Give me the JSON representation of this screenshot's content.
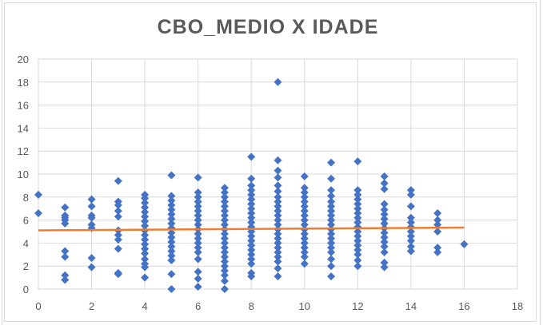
{
  "chart_data": {
    "type": "scatter",
    "title": "CBO_MEDIO X IDADE",
    "xlabel": "",
    "ylabel": "",
    "xlim": [
      0,
      18
    ],
    "ylim": [
      0,
      20
    ],
    "xticks": [
      "0",
      "2",
      "4",
      "6",
      "8",
      "10",
      "12",
      "14",
      "16",
      "18"
    ],
    "yticks": [
      "0",
      "2",
      "4",
      "6",
      "8",
      "10",
      "12",
      "14",
      "16",
      "18",
      "20"
    ],
    "grid": true,
    "legend": "none",
    "colors": {
      "points": "#4472c4",
      "trendline": "#ed7d31",
      "grid": "#d9d9d9",
      "text": "#595959"
    },
    "series": [
      {
        "points": [
          [
            0,
            8.2
          ],
          [
            0,
            6.6
          ],
          [
            1,
            7.1
          ],
          [
            1,
            6.4
          ],
          [
            1,
            6.2
          ],
          [
            1,
            6.0
          ],
          [
            1,
            5.7
          ],
          [
            1,
            3.3
          ],
          [
            1,
            2.8
          ],
          [
            1,
            1.2
          ],
          [
            1,
            0.8
          ],
          [
            2,
            7.8
          ],
          [
            2,
            7.2
          ],
          [
            2,
            6.4
          ],
          [
            2,
            6.2
          ],
          [
            2,
            5.6
          ],
          [
            2,
            5.3
          ],
          [
            2,
            2.7
          ],
          [
            2,
            1.9
          ],
          [
            3,
            9.4
          ],
          [
            3,
            7.6
          ],
          [
            3,
            7.3
          ],
          [
            3,
            6.8
          ],
          [
            3,
            6.3
          ],
          [
            3,
            5.1
          ],
          [
            3,
            4.7
          ],
          [
            3,
            4.3
          ],
          [
            3,
            3.5
          ],
          [
            3,
            1.4
          ],
          [
            3,
            1.3
          ],
          [
            4,
            8.2
          ],
          [
            4,
            7.9
          ],
          [
            4,
            7.5
          ],
          [
            4,
            7.1
          ],
          [
            4,
            6.7
          ],
          [
            4,
            6.3
          ],
          [
            4,
            5.9
          ],
          [
            4,
            5.5
          ],
          [
            4,
            5.1
          ],
          [
            4,
            4.7
          ],
          [
            4,
            4.3
          ],
          [
            4,
            3.9
          ],
          [
            4,
            3.5
          ],
          [
            4,
            3.1
          ],
          [
            4,
            2.6
          ],
          [
            4,
            2.2
          ],
          [
            4,
            1.9
          ],
          [
            4,
            1.0
          ],
          [
            5,
            9.9
          ],
          [
            5,
            8.1
          ],
          [
            5,
            7.7
          ],
          [
            5,
            7.3
          ],
          [
            5,
            6.9
          ],
          [
            5,
            6.5
          ],
          [
            5,
            6.1
          ],
          [
            5,
            5.7
          ],
          [
            5,
            5.3
          ],
          [
            5,
            4.9
          ],
          [
            5,
            4.5
          ],
          [
            5,
            4.1
          ],
          [
            5,
            3.7
          ],
          [
            5,
            3.3
          ],
          [
            5,
            2.9
          ],
          [
            5,
            2.5
          ],
          [
            5,
            1.3
          ],
          [
            5,
            0.0
          ],
          [
            6,
            9.7
          ],
          [
            6,
            8.4
          ],
          [
            6,
            8.0
          ],
          [
            6,
            7.6
          ],
          [
            6,
            7.2
          ],
          [
            6,
            6.8
          ],
          [
            6,
            6.4
          ],
          [
            6,
            6.0
          ],
          [
            6,
            5.6
          ],
          [
            6,
            5.2
          ],
          [
            6,
            4.8
          ],
          [
            6,
            4.4
          ],
          [
            6,
            4.0
          ],
          [
            6,
            3.6
          ],
          [
            6,
            3.2
          ],
          [
            6,
            2.6
          ],
          [
            6,
            1.5
          ],
          [
            6,
            0.9
          ],
          [
            6,
            0.2
          ],
          [
            7,
            8.8
          ],
          [
            7,
            8.4
          ],
          [
            7,
            8.0
          ],
          [
            7,
            7.6
          ],
          [
            7,
            7.2
          ],
          [
            7,
            6.8
          ],
          [
            7,
            6.4
          ],
          [
            7,
            6.0
          ],
          [
            7,
            5.6
          ],
          [
            7,
            5.2
          ],
          [
            7,
            4.8
          ],
          [
            7,
            4.4
          ],
          [
            7,
            4.0
          ],
          [
            7,
            3.6
          ],
          [
            7,
            3.2
          ],
          [
            7,
            2.8
          ],
          [
            7,
            2.4
          ],
          [
            7,
            2.0
          ],
          [
            7,
            1.6
          ],
          [
            7,
            1.2
          ],
          [
            7,
            0.7
          ],
          [
            7,
            0.0
          ],
          [
            8,
            11.5
          ],
          [
            8,
            9.6
          ],
          [
            8,
            9.0
          ],
          [
            8,
            8.6
          ],
          [
            8,
            8.2
          ],
          [
            8,
            7.8
          ],
          [
            8,
            7.4
          ],
          [
            8,
            7.0
          ],
          [
            8,
            6.6
          ],
          [
            8,
            6.2
          ],
          [
            8,
            5.8
          ],
          [
            8,
            5.4
          ],
          [
            8,
            5.0
          ],
          [
            8,
            4.6
          ],
          [
            8,
            4.2
          ],
          [
            8,
            3.8
          ],
          [
            8,
            3.4
          ],
          [
            8,
            3.0
          ],
          [
            8,
            2.6
          ],
          [
            8,
            2.2
          ],
          [
            8,
            1.4
          ],
          [
            8,
            1.1
          ],
          [
            9,
            18.0
          ],
          [
            9,
            11.2
          ],
          [
            9,
            10.3
          ],
          [
            9,
            9.7
          ],
          [
            9,
            9.0
          ],
          [
            9,
            8.5
          ],
          [
            9,
            8.0
          ],
          [
            9,
            7.6
          ],
          [
            9,
            7.2
          ],
          [
            9,
            6.8
          ],
          [
            9,
            6.4
          ],
          [
            9,
            6.0
          ],
          [
            9,
            5.6
          ],
          [
            9,
            5.2
          ],
          [
            9,
            4.8
          ],
          [
            9,
            4.4
          ],
          [
            9,
            4.0
          ],
          [
            9,
            3.6
          ],
          [
            9,
            3.2
          ],
          [
            9,
            2.8
          ],
          [
            9,
            2.4
          ],
          [
            9,
            1.8
          ],
          [
            9,
            1.1
          ],
          [
            10,
            9.8
          ],
          [
            10,
            8.8
          ],
          [
            10,
            8.4
          ],
          [
            10,
            8.0
          ],
          [
            10,
            7.6
          ],
          [
            10,
            7.2
          ],
          [
            10,
            6.8
          ],
          [
            10,
            6.4
          ],
          [
            10,
            6.0
          ],
          [
            10,
            5.6
          ],
          [
            10,
            5.2
          ],
          [
            10,
            4.8
          ],
          [
            10,
            4.4
          ],
          [
            10,
            4.0
          ],
          [
            10,
            3.6
          ],
          [
            10,
            3.2
          ],
          [
            10,
            2.8
          ],
          [
            10,
            2.2
          ],
          [
            11,
            11.0
          ],
          [
            11,
            9.6
          ],
          [
            11,
            8.6
          ],
          [
            11,
            8.1
          ],
          [
            11,
            7.6
          ],
          [
            11,
            7.2
          ],
          [
            11,
            6.8
          ],
          [
            11,
            6.4
          ],
          [
            11,
            6.0
          ],
          [
            11,
            5.6
          ],
          [
            11,
            5.2
          ],
          [
            11,
            4.8
          ],
          [
            11,
            4.4
          ],
          [
            11,
            4.0
          ],
          [
            11,
            3.6
          ],
          [
            11,
            3.2
          ],
          [
            11,
            2.6
          ],
          [
            11,
            2.0
          ],
          [
            11,
            1.1
          ],
          [
            12,
            11.1
          ],
          [
            12,
            8.6
          ],
          [
            12,
            8.2
          ],
          [
            12,
            7.8
          ],
          [
            12,
            7.4
          ],
          [
            12,
            7.0
          ],
          [
            12,
            6.6
          ],
          [
            12,
            6.2
          ],
          [
            12,
            5.8
          ],
          [
            12,
            5.4
          ],
          [
            12,
            5.0
          ],
          [
            12,
            4.6
          ],
          [
            12,
            4.2
          ],
          [
            12,
            3.8
          ],
          [
            12,
            3.4
          ],
          [
            12,
            3.0
          ],
          [
            12,
            2.5
          ],
          [
            12,
            2.0
          ],
          [
            13,
            9.8
          ],
          [
            13,
            9.2
          ],
          [
            13,
            8.7
          ],
          [
            13,
            7.4
          ],
          [
            13,
            6.9
          ],
          [
            13,
            6.5
          ],
          [
            13,
            6.1
          ],
          [
            13,
            5.7
          ],
          [
            13,
            5.3
          ],
          [
            13,
            4.9
          ],
          [
            13,
            4.5
          ],
          [
            13,
            4.1
          ],
          [
            13,
            3.7
          ],
          [
            13,
            3.2
          ],
          [
            13,
            2.3
          ],
          [
            13,
            1.9
          ],
          [
            14,
            8.6
          ],
          [
            14,
            8.2
          ],
          [
            14,
            7.2
          ],
          [
            14,
            6.2
          ],
          [
            14,
            5.8
          ],
          [
            14,
            5.4
          ],
          [
            14,
            5.0
          ],
          [
            14,
            4.6
          ],
          [
            14,
            4.2
          ],
          [
            14,
            3.7
          ],
          [
            14,
            3.3
          ],
          [
            15,
            6.6
          ],
          [
            15,
            6.0
          ],
          [
            15,
            5.6
          ],
          [
            15,
            5.0
          ],
          [
            15,
            3.6
          ],
          [
            15,
            3.2
          ],
          [
            16,
            3.9
          ]
        ]
      }
    ],
    "trendline": {
      "x": [
        0,
        16
      ],
      "y": [
        5.1,
        5.35
      ]
    }
  }
}
